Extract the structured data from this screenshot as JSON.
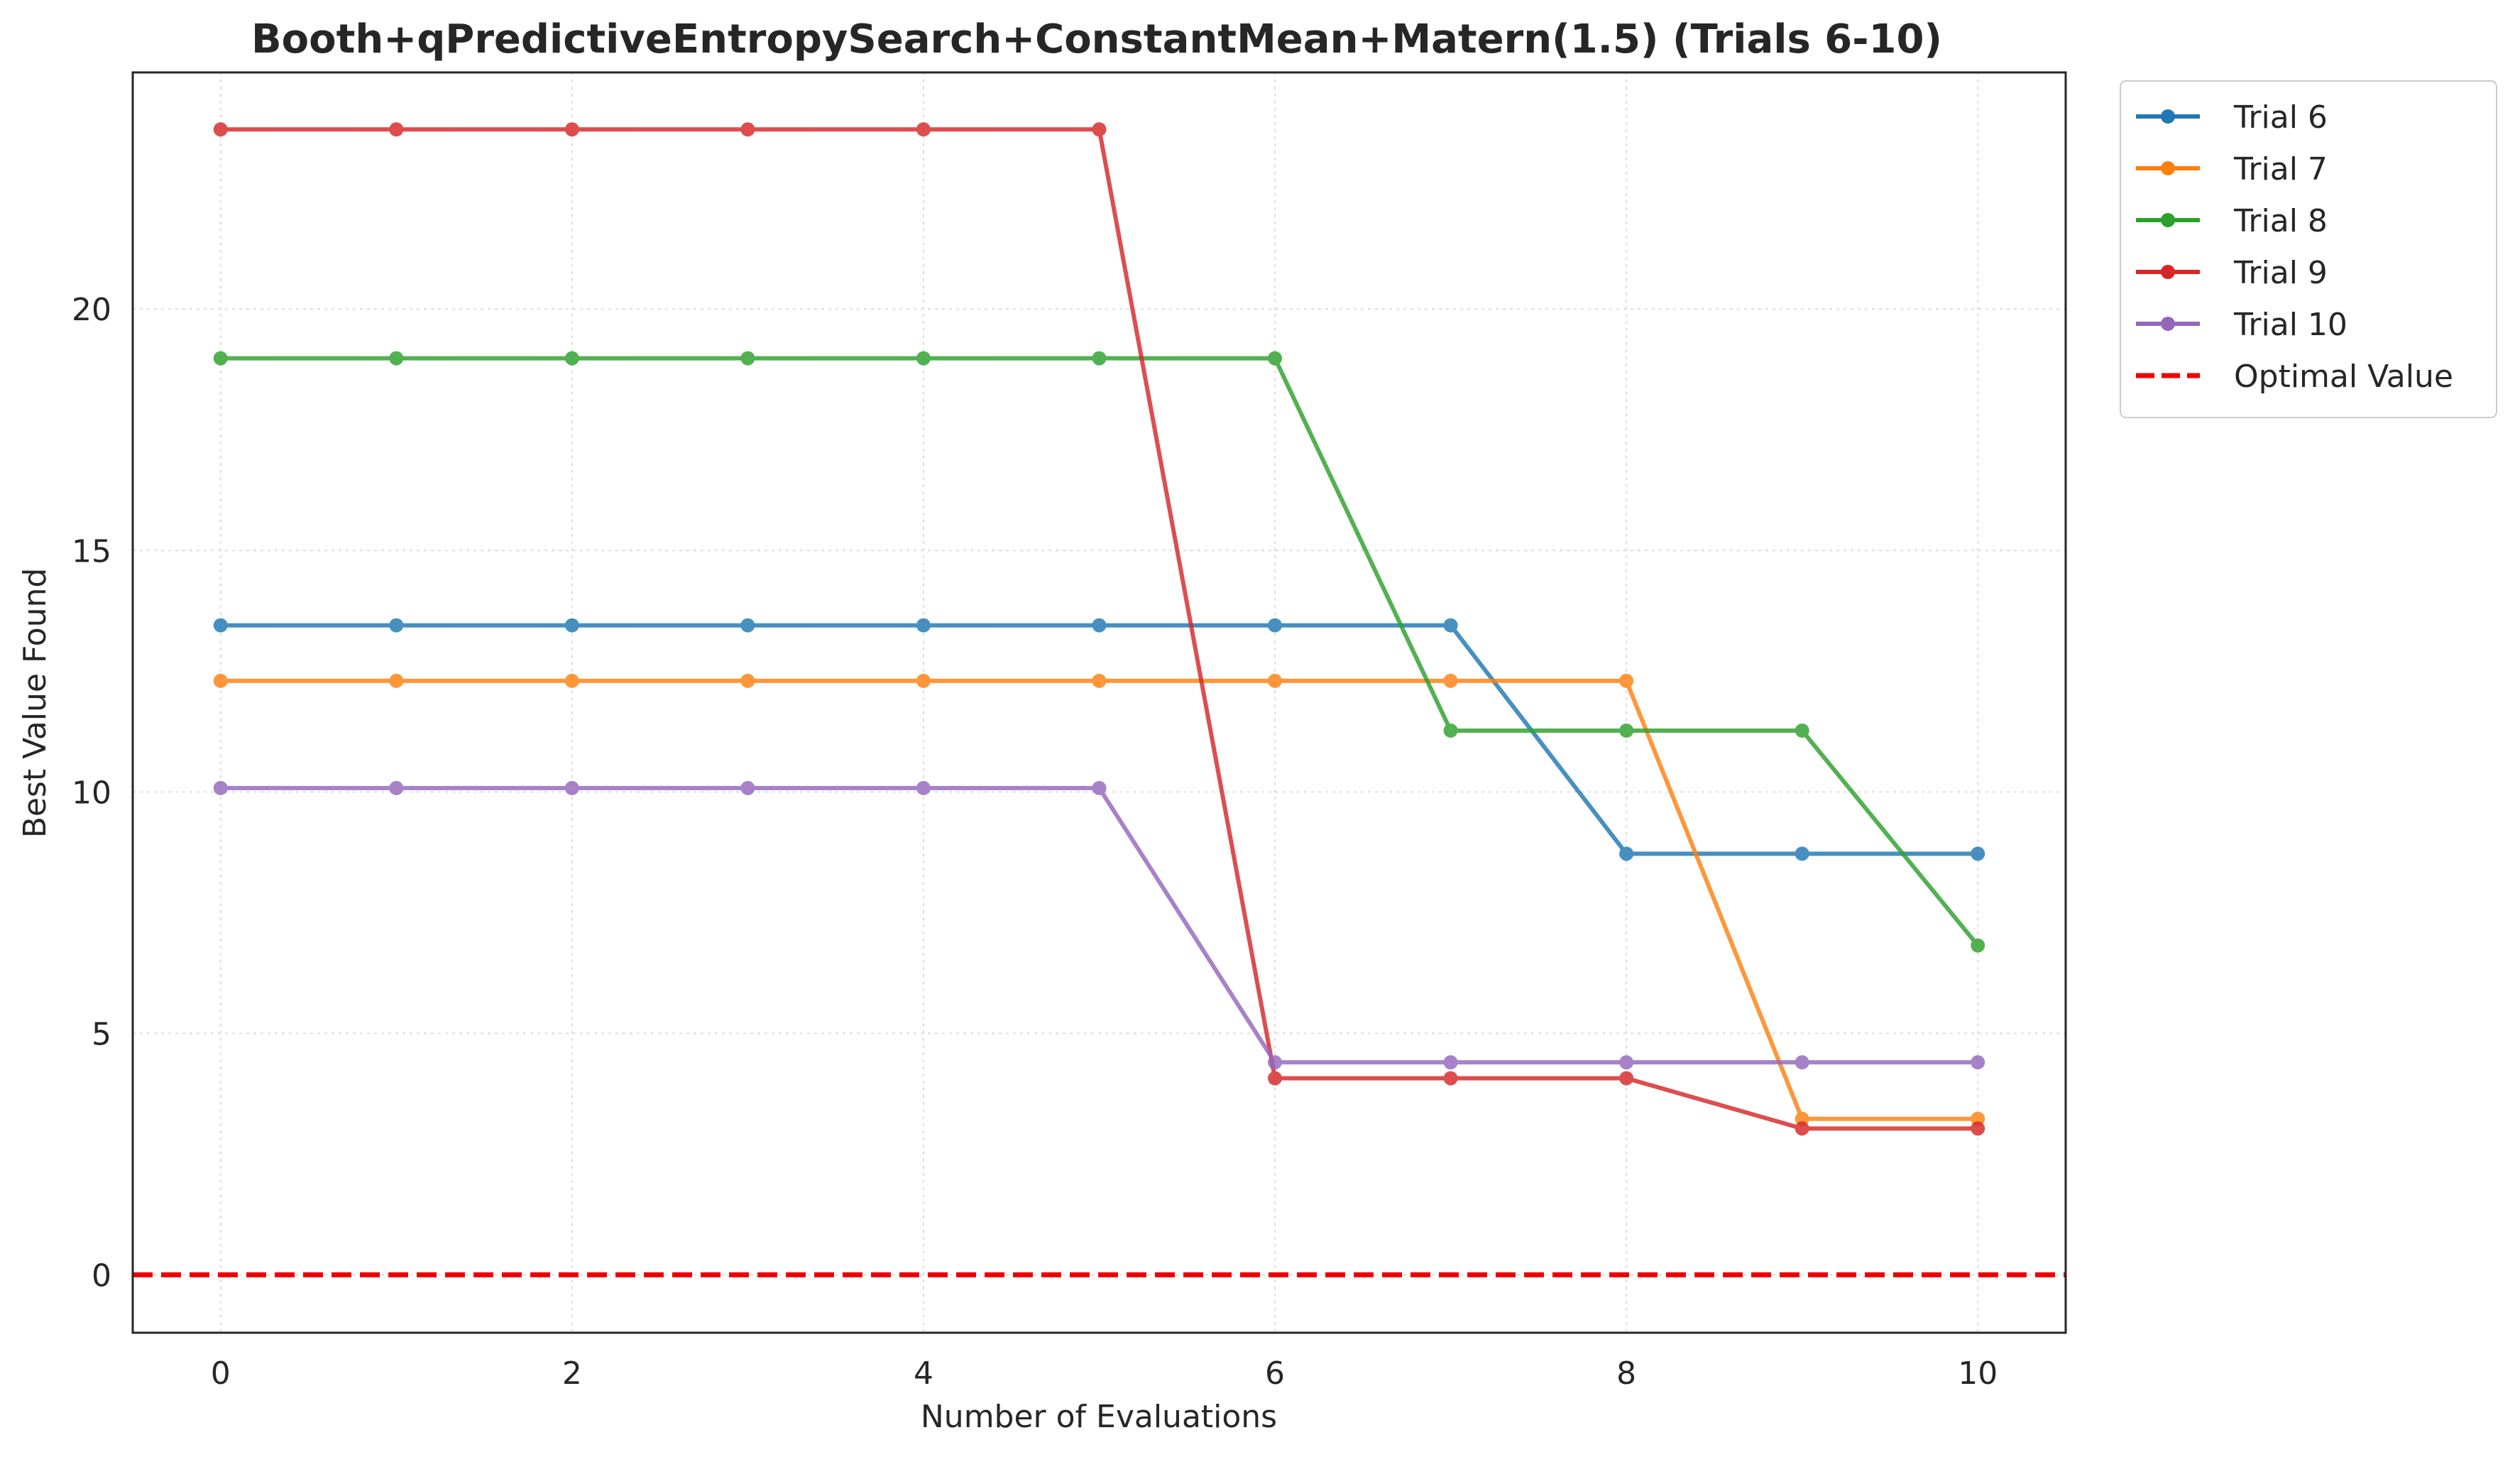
{
  "chart_data": {
    "type": "line",
    "title": "Booth+qPredictiveEntropySearch+ConstantMean+Matern(1.5) (Trials 6-10)",
    "xlabel": "Number of Evaluations",
    "ylabel": "Best Value Found",
    "xlim": [
      -0.5,
      10.5
    ],
    "ylim": [
      -1.2,
      24.9
    ],
    "xticks": [
      0,
      2,
      4,
      6,
      8,
      10
    ],
    "yticks": [
      0,
      5,
      10,
      15,
      20
    ],
    "grid": true,
    "legend_position": "outside-top-right",
    "x": [
      0,
      1,
      2,
      3,
      4,
      5,
      6,
      7,
      8,
      9,
      10
    ],
    "series": [
      {
        "name": "Trial 6",
        "color": "#1f77b4",
        "values": [
          13.45,
          13.45,
          13.45,
          13.45,
          13.45,
          13.45,
          13.45,
          13.45,
          8.72,
          8.72,
          8.72
        ]
      },
      {
        "name": "Trial 7",
        "color": "#ff7f0e",
        "values": [
          12.3,
          12.3,
          12.3,
          12.3,
          12.3,
          12.3,
          12.3,
          12.3,
          12.3,
          3.23,
          3.23
        ]
      },
      {
        "name": "Trial 8",
        "color": "#2ca02c",
        "values": [
          18.98,
          18.98,
          18.98,
          18.98,
          18.98,
          18.98,
          18.98,
          11.27,
          11.27,
          11.27,
          6.82
        ]
      },
      {
        "name": "Trial 9",
        "color": "#d62728",
        "values": [
          23.72,
          23.72,
          23.72,
          23.72,
          23.72,
          23.72,
          4.07,
          4.07,
          4.07,
          3.03,
          3.03
        ]
      },
      {
        "name": "Trial 10",
        "color": "#9467bd",
        "values": [
          10.08,
          10.08,
          10.08,
          10.08,
          10.08,
          10.08,
          4.4,
          4.4,
          4.4,
          4.4,
          4.4
        ]
      }
    ],
    "reference_line": {
      "name": "Optimal Value",
      "value": 0,
      "color": "#ee0000",
      "style": "dashed"
    }
  }
}
